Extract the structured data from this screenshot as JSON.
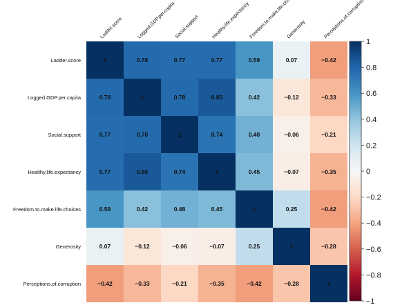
{
  "chart_data": {
    "type": "heatmap",
    "variables": [
      "Ladder.score",
      "Logged.GDP.per.capita",
      "Social.support",
      "Healthy.life.expectancy",
      "Freedom.to.make.life.choices",
      "Generosity",
      "Perceptions.of.corruption"
    ],
    "matrix": [
      [
        1,
        0.78,
        0.77,
        0.77,
        0.59,
        0.07,
        -0.42
      ],
      [
        0.78,
        1,
        0.78,
        0.85,
        0.42,
        -0.12,
        -0.33
      ],
      [
        0.77,
        0.78,
        1,
        0.74,
        0.48,
        -0.06,
        -0.21
      ],
      [
        0.77,
        0.85,
        0.74,
        1,
        0.45,
        -0.07,
        -0.35
      ],
      [
        0.59,
        0.42,
        0.48,
        0.45,
        1,
        0.25,
        -0.42
      ],
      [
        0.07,
        -0.12,
        -0.06,
        -0.07,
        0.25,
        1,
        -0.28
      ],
      [
        -0.42,
        -0.33,
        -0.21,
        -0.35,
        -0.42,
        -0.28,
        1
      ]
    ],
    "value_labels": [
      [
        "1",
        "0.78",
        "0.77",
        "0.77",
        "0.59",
        "0.07",
        "−0.42"
      ],
      [
        "0.78",
        "1",
        "0.78",
        "0.85",
        "0.42",
        "−0.12",
        "−0.33"
      ],
      [
        "0.77",
        "0.78",
        "1",
        "0.74",
        "0.48",
        "−0.06",
        "−0.21"
      ],
      [
        "0.77",
        "0.85",
        "0.74",
        "1",
        "0.45",
        "−0.07",
        "−0.35"
      ],
      [
        "0.59",
        "0.42",
        "0.48",
        "0.45",
        "1",
        "0.25",
        "−0.42"
      ],
      [
        "0.07",
        "−0.12",
        "−0.06",
        "−0.07",
        "0.25",
        "1",
        "−0.28"
      ],
      [
        "−0.42",
        "−0.33",
        "−0.21",
        "−0.35",
        "−0.42",
        "−0.28",
        "1"
      ]
    ],
    "colorbar": {
      "range": [
        -1,
        1
      ],
      "ticks": [
        1,
        0.8,
        0.6,
        0.4,
        0.2,
        0,
        -0.2,
        -0.4,
        -0.6,
        -0.8,
        -1
      ],
      "tick_labels": [
        "1",
        "0.8",
        "0.6",
        "0.4",
        "0.2",
        "0",
        "−0.2",
        "−0.4",
        "−0.6",
        "−0.8",
        "−1"
      ],
      "colors": {
        "negative_end": "#67001f",
        "mid_negative": "#d6604d",
        "neutral": "#f7f7f7",
        "mid_positive": "#4393c3",
        "positive_end": "#053061"
      },
      "placement": "right"
    },
    "title": "",
    "xlabel": "",
    "ylabel": "",
    "grid": false
  }
}
